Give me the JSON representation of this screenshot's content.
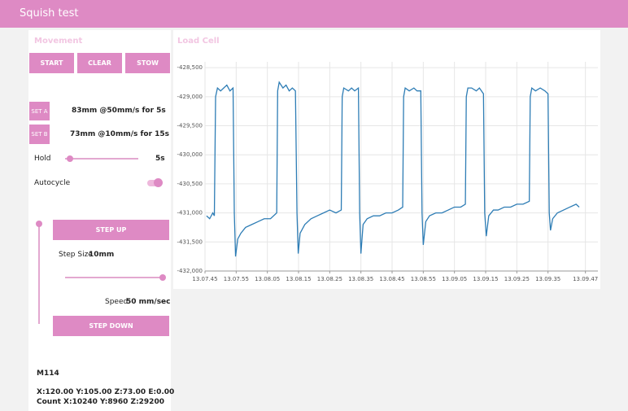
{
  "header": {
    "title": "Squish test"
  },
  "movement": {
    "title": "Movement",
    "buttons": [
      "START",
      "CLEAR",
      "STOW"
    ],
    "set_a": {
      "button": "SET A",
      "text": "83mm @50mm/s for 5s"
    },
    "set_b": {
      "button": "SET B",
      "text": "73mm @10mm/s for 15s"
    },
    "hold": {
      "label": "Hold",
      "value": "5s"
    },
    "autocycle": {
      "label": "Autocycle"
    },
    "step_up": "STEP UP",
    "step_size": {
      "label": "Step Size",
      "value": "10mm"
    },
    "speed": {
      "label": "Speed",
      "value": "50 mm/sec"
    },
    "step_down": "STEP DOWN",
    "console": {
      "command": "M114",
      "lines": [
        "X:120.00 Y:105.00 Z:73.00 E:0.00",
        "Count X:10240 Y:8960 Z:29200"
      ]
    }
  },
  "chart_data": {
    "type": "line",
    "title": "Load Cell",
    "grid": true,
    "xlim": [
      47265,
      47391
    ],
    "xticks": [
      {
        "value": 47265,
        "label": "13.07.45"
      },
      {
        "value": 47275,
        "label": "13.07.55"
      },
      {
        "value": 47285,
        "label": "13.08.05"
      },
      {
        "value": 47295,
        "label": "13.08.15"
      },
      {
        "value": 47305,
        "label": "13.08.25"
      },
      {
        "value": 47315,
        "label": "13.08.35"
      },
      {
        "value": 47325,
        "label": "13.08.45"
      },
      {
        "value": 47335,
        "label": "13.08.55"
      },
      {
        "value": 47345,
        "label": "13.09.05"
      },
      {
        "value": 47355,
        "label": "13.09.15"
      },
      {
        "value": 47365,
        "label": "13.09.25"
      },
      {
        "value": 47375,
        "label": "13.09.35"
      },
      {
        "value": 47387,
        "label": "13.09.47"
      }
    ],
    "ylim": [
      -432000,
      -428400
    ],
    "yticks": [
      {
        "value": -432000,
        "label": "-432,000"
      },
      {
        "value": -431500,
        "label": "-431,500"
      },
      {
        "value": -431000,
        "label": "-431,000"
      },
      {
        "value": -430500,
        "label": "-430,500"
      },
      {
        "value": -430000,
        "label": "-430,000"
      },
      {
        "value": -429500,
        "label": "-429,500"
      },
      {
        "value": -429000,
        "label": "-429,000"
      },
      {
        "value": -428500,
        "label": "-428,500"
      }
    ],
    "series": [
      {
        "color": "#2e7db5",
        "x": [
          47265.5,
          47266.5,
          47267.5,
          47268,
          47268.4,
          47269,
          47270,
          47271,
          47272,
          47273,
          47274,
          47274.4,
          47274.8,
          47275.5,
          47276.5,
          47278,
          47280,
          47282,
          47284,
          47286,
          47288,
          47288.3,
          47288.8,
          47290,
          47291,
          47292,
          47293,
          47294,
          47294.5,
          47294.9,
          47295.5,
          47297,
          47299,
          47301,
          47303,
          47305,
          47307,
          47308.7,
          47309,
          47309.5,
          47311,
          47312,
          47313,
          47314.2,
          47314.6,
          47315,
          47315.7,
          47317,
          47319,
          47321,
          47323,
          47325,
          47327,
          47328.4,
          47328.7,
          47329.2,
          47330.5,
          47332,
          47333,
          47334.2,
          47334.6,
          47335,
          47335.8,
          47337,
          47339,
          47341,
          47343,
          47345,
          47347,
          47348.5,
          47348.8,
          47349.3,
          47350.5,
          47352,
          47353,
          47354.3,
          47354.7,
          47355.2,
          47356,
          47357.5,
          47359,
          47361,
          47363,
          47365,
          47367,
          47369,
          47369.3,
          47369.8,
          47371,
          47372.5,
          47374,
          47375,
          47375.4,
          47375.8,
          47376.5,
          47378,
          47380,
          47382,
          47384,
          47385
        ],
        "values": [
          -431050,
          -431100,
          -431000,
          -431050,
          -429000,
          -428850,
          -428900,
          -428850,
          -428800,
          -428900,
          -428850,
          -431000,
          -431750,
          -431450,
          -431350,
          -431250,
          -431200,
          -431150,
          -431100,
          -431100,
          -431000,
          -428900,
          -428750,
          -428850,
          -428800,
          -428900,
          -428850,
          -428900,
          -431000,
          -431700,
          -431350,
          -431200,
          -431100,
          -431050,
          -431000,
          -430950,
          -431000,
          -430950,
          -429000,
          -428850,
          -428900,
          -428850,
          -428900,
          -428850,
          -431000,
          -431700,
          -431200,
          -431100,
          -431050,
          -431050,
          -431000,
          -431000,
          -430950,
          -430900,
          -429000,
          -428850,
          -428900,
          -428850,
          -428900,
          -428900,
          -431000,
          -431550,
          -431150,
          -431050,
          -431000,
          -431000,
          -430950,
          -430900,
          -430900,
          -430850,
          -429000,
          -428850,
          -428850,
          -428900,
          -428850,
          -428950,
          -431000,
          -431400,
          -431050,
          -430950,
          -430950,
          -430900,
          -430900,
          -430850,
          -430850,
          -430800,
          -429000,
          -428850,
          -428900,
          -428850,
          -428900,
          -428950,
          -431000,
          -431300,
          -431100,
          -431000,
          -430950,
          -430900,
          -430850,
          -430900
        ]
      }
    ]
  }
}
